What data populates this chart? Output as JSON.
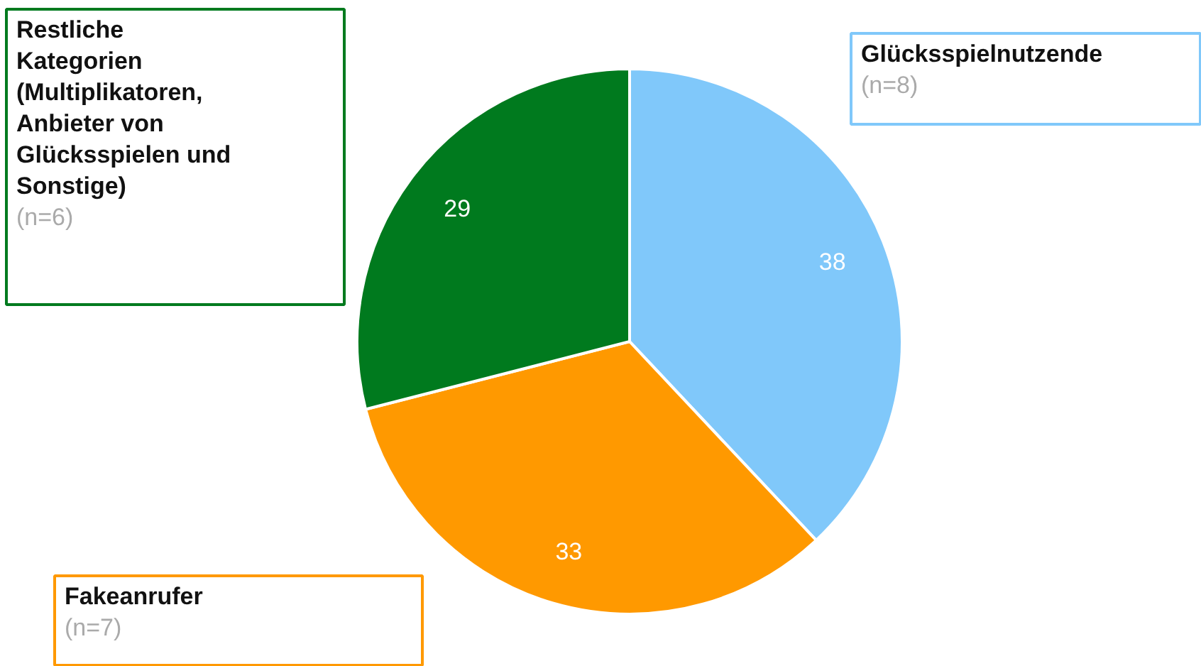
{
  "chart_data": {
    "type": "pie",
    "categories": [
      "Glücksspielnutzende",
      "Fakeanrufer",
      "Restliche Kategorien (Multiplikatoren, Anbieter von Glücksspielen und Sonstige)"
    ],
    "values": [
      38,
      33,
      29
    ],
    "colors": [
      "#80c8fa",
      "#ff9900",
      "#007a1e"
    ],
    "data_labels": true,
    "annotations": [
      "(n=8)",
      "(n=7)",
      "(n=6)"
    ]
  }
}
